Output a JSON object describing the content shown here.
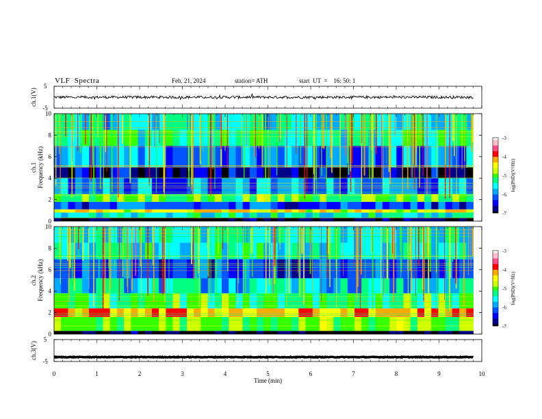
{
  "header": {
    "title": "VLF  Spectra",
    "date": "Feb. 21, 2024",
    "station": "station= ATH",
    "start_ut": "start  UT  =    16: 50: 1"
  },
  "colors": {
    "colormap": [
      "#000000",
      "#00008b",
      "#0000ff",
      "#0055ff",
      "#00aaff",
      "#00ffff",
      "#00ff80",
      "#33ff00",
      "#ccff00",
      "#ffff00",
      "#ffaa00",
      "#ff0000",
      "#ff4d88",
      "#ffc0cb",
      "#ffffff"
    ]
  },
  "chart_data": [
    {
      "type": "line",
      "panel": "ch1-waveform",
      "ylabel": "ch.1(V)",
      "yticks": [
        "5",
        "-5"
      ],
      "ylim": [
        -5,
        5
      ],
      "xlim": [
        0,
        10
      ],
      "series": [
        {
          "x_range": [
            0,
            9.8
          ],
          "mean": 0,
          "amplitude": 0.6
        }
      ]
    },
    {
      "type": "heatmap",
      "panel": "ch1-spectrogram",
      "ylabel": "ch.1\nFrequency  (kHz)",
      "yticks": [
        "0",
        "2",
        "4",
        "6",
        "8",
        "10"
      ],
      "ylim": [
        0,
        10
      ],
      "xlim": [
        0,
        10
      ],
      "data_x_range": [
        0,
        9.8
      ],
      "colorbar": {
        "label": "log(PSD)(V²/Hz)",
        "ticks": [
          "-3",
          "-4",
          "-5",
          "-6",
          "-7"
        ],
        "range": [
          -7,
          -3
        ]
      },
      "bands": [
        {
          "freq": [
            0.0,
            0.3
          ],
          "log_psd": -7
        },
        {
          "freq": [
            0.3,
            0.8
          ],
          "log_psd": -5.5
        },
        {
          "freq": [
            0.8,
            1.1
          ],
          "log_psd": -4.5
        },
        {
          "freq": [
            1.1,
            1.8
          ],
          "log_psd": -6.2
        },
        {
          "freq": [
            1.8,
            2.5
          ],
          "log_psd": -5.0
        },
        {
          "freq": [
            2.5,
            4.0
          ],
          "log_psd": -6.0
        },
        {
          "freq": [
            4.0,
            5.0
          ],
          "log_psd": -6.6
        },
        {
          "freq": [
            5.0,
            7.0
          ],
          "log_psd": -6.0
        },
        {
          "freq": [
            7.0,
            8.5
          ],
          "log_psd": -5.3
        },
        {
          "freq": [
            8.5,
            10.0
          ],
          "log_psd": -5.6
        }
      ]
    },
    {
      "type": "heatmap",
      "panel": "ch2-spectrogram",
      "ylabel": "ch.2\nFrequency  (kHz)",
      "yticks": [
        "0",
        "2",
        "4",
        "6",
        "8",
        "10"
      ],
      "ylim": [
        0,
        10
      ],
      "xlim": [
        0,
        10
      ],
      "data_x_range": [
        0,
        9.8
      ],
      "colorbar": {
        "label": "log(PSD)(V²/Hz)",
        "ticks": [
          "-3",
          "-4",
          "-5",
          "-6",
          "-7"
        ],
        "range": [
          -7,
          -3
        ]
      },
      "bands": [
        {
          "freq": [
            0.0,
            0.3
          ],
          "log_psd": -7
        },
        {
          "freq": [
            0.3,
            1.6
          ],
          "log_psd": -5.0
        },
        {
          "freq": [
            1.6,
            2.4
          ],
          "log_psd": -4.2
        },
        {
          "freq": [
            2.4,
            3.8
          ],
          "log_psd": -5.2
        },
        {
          "freq": [
            3.8,
            5.2
          ],
          "log_psd": -5.7
        },
        {
          "freq": [
            5.2,
            7.0
          ],
          "log_psd": -6.3
        },
        {
          "freq": [
            7.0,
            8.5
          ],
          "log_psd": -5.5
        },
        {
          "freq": [
            8.5,
            10.0
          ],
          "log_psd": -5.6
        }
      ]
    },
    {
      "type": "line",
      "panel": "ch3-waveform",
      "ylabel": "ch.3(V)",
      "yticks": [
        "5",
        "-5"
      ],
      "ylim": [
        -5,
        5
      ],
      "xlim": [
        0,
        10
      ],
      "xlabel": "Time  (min)",
      "xticks": [
        "0",
        "1",
        "2",
        "3",
        "4",
        "5",
        "6",
        "7",
        "8",
        "9",
        "10"
      ],
      "series": [
        {
          "x_range": [
            0,
            9.8
          ],
          "mean": -3,
          "amplitude": 0.15
        }
      ]
    }
  ]
}
